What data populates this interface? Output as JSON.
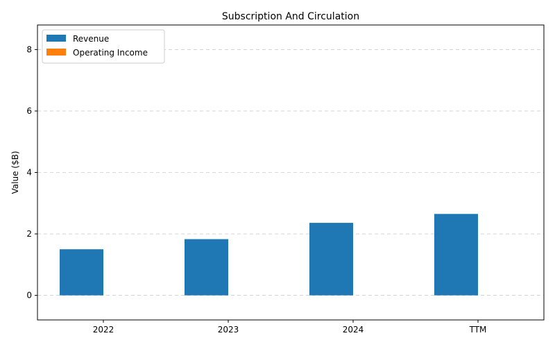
{
  "chart_data": {
    "type": "bar",
    "title": "Subscription And Circulation",
    "xlabel": "",
    "ylabel": "Value ($B)",
    "categories": [
      "2022",
      "2023",
      "2024",
      "TTM"
    ],
    "series": [
      {
        "name": "Revenue",
        "values": [
          1.5,
          1.83,
          2.36,
          2.65
        ],
        "color": "#1f77b4"
      },
      {
        "name": "Operating Income",
        "values": [
          0,
          0,
          0,
          0
        ],
        "color": "#ff7f0e"
      }
    ],
    "ylim": [
      -0.8,
      8.8
    ],
    "yticks": [
      0,
      2,
      4,
      6,
      8
    ],
    "grid": "horizontal-dashed",
    "legend_position": "top-left"
  }
}
